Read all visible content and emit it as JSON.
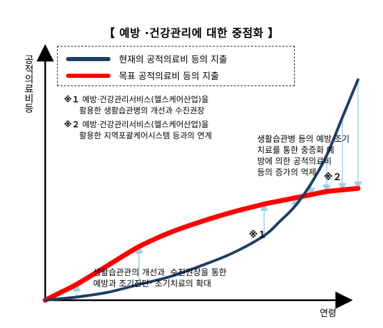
{
  "header": {
    "title": "【 예방 ·건강관리에 대한 중점화 】"
  },
  "axes": {
    "ylabel": "공적의료비등",
    "xlabel": "연령"
  },
  "legend": {
    "items": [
      {
        "label": "현재의 공적의료비 등의 지출",
        "color": "#1f3f63"
      },
      {
        "label": "목표 공적의료비 등의 지출",
        "color": "#ff0000"
      }
    ]
  },
  "notes": [
    {
      "mark": "※１",
      "line1": "예방·건강관리서비스(헬스케어산업)을",
      "line2": "활용한 생활습관병의 개선과 수진권장"
    },
    {
      "mark": "※２",
      "line1": "예방·건강관리서비스(헬스케어산업)을",
      "line2": "활용한 지역포괄케어시스템 등과의 연계"
    }
  ],
  "annotations": {
    "bottom": "생활습관관의 개선과  수진권장을 통한\n예방과 조기진단· 조기치료의 확대",
    "right": "생활습관병 등의 예방·조기\n치료를 통한 중증화 예\n방에 의한 공적의료비\n등의 증가의 억제",
    "marker1": "※１",
    "marker2": "※２"
  },
  "chart_data": {
    "type": "line",
    "title": "【 예방 ·건강관리에 대한 중점화 】",
    "xlabel": "연령",
    "ylabel": "공적의료비등",
    "x_ticks": "none",
    "y_ticks": "none",
    "grid": false,
    "legend_position": "top-left",
    "x": [
      0,
      5,
      10,
      20,
      30,
      40,
      50,
      60,
      70,
      75,
      80,
      85,
      90,
      95,
      100
    ],
    "series": [
      {
        "name": "현재의 공적의료비 등의 지출",
        "color": "#1f3f63",
        "values": [
          0,
          1,
          2,
          5,
          10,
          15,
          22,
          30,
          41,
          50,
          60,
          74,
          92,
          116,
          140
        ]
      },
      {
        "name": "목표 공적의료비 등의 지출",
        "color": "#ff0000",
        "values": [
          0,
          5,
          10,
          22,
          34,
          43,
          50,
          56,
          61,
          63,
          65,
          67,
          69,
          70,
          71
        ]
      }
    ],
    "ylim": [
      0,
      150
    ],
    "xlim": [
      0,
      100
    ]
  }
}
